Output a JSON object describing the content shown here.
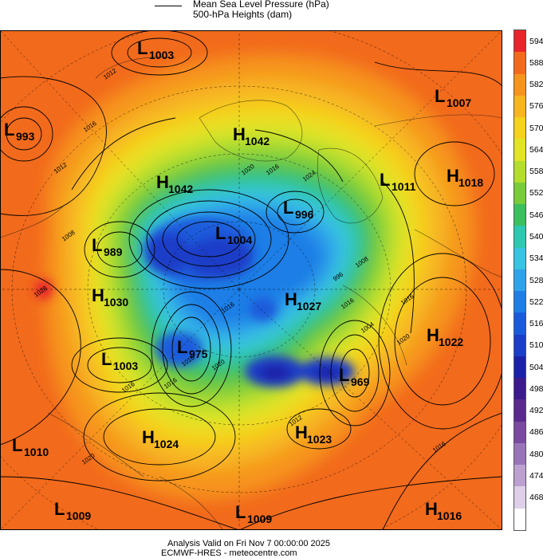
{
  "legend": {
    "line1": "Mean Sea Level Pressure (hPa)",
    "line2": "500-hPa Heights (dam)"
  },
  "colorbar": {
    "levels": [
      {
        "label": "594",
        "color": "#e8252a"
      },
      {
        "label": "588",
        "color": "#f26a1c"
      },
      {
        "label": "582",
        "color": "#f6941e"
      },
      {
        "label": "576",
        "color": "#f7b520"
      },
      {
        "label": "570",
        "color": "#f5d21c"
      },
      {
        "label": "564",
        "color": "#e2e426"
      },
      {
        "label": "558",
        "color": "#b4de2e"
      },
      {
        "label": "552",
        "color": "#78cc3a"
      },
      {
        "label": "546",
        "color": "#3cbf5e"
      },
      {
        "label": "540",
        "color": "#2ec7b0"
      },
      {
        "label": "534",
        "color": "#38c4e3"
      },
      {
        "label": "528",
        "color": "#2fa3ea"
      },
      {
        "label": "522",
        "color": "#1e7ee6"
      },
      {
        "label": "516",
        "color": "#1a5bdc"
      },
      {
        "label": "510",
        "color": "#1a3ec8"
      },
      {
        "label": "504",
        "color": "#1a21a8"
      },
      {
        "label": "498",
        "color": "#3a1a8c"
      },
      {
        "label": "492",
        "color": "#5a2a8e"
      },
      {
        "label": "486",
        "color": "#7a4aa0"
      },
      {
        "label": "480",
        "color": "#9a74b8"
      },
      {
        "label": "474",
        "color": "#bca0d0"
      },
      {
        "label": "468",
        "color": "#ddd0e8"
      },
      {
        "label": "",
        "color": "#ffffff"
      }
    ]
  },
  "systems": [
    {
      "type": "L",
      "value": "1003"
    },
    {
      "type": "L",
      "value": "993"
    },
    {
      "type": "L",
      "value": "1007"
    },
    {
      "type": "H",
      "value": "1042"
    },
    {
      "type": "H",
      "value": "1042"
    },
    {
      "type": "L",
      "value": "1011"
    },
    {
      "type": "H",
      "value": "1018"
    },
    {
      "type": "L",
      "value": "996"
    },
    {
      "type": "L",
      "value": "1004"
    },
    {
      "type": "L",
      "value": "989"
    },
    {
      "type": "H",
      "value": "1030"
    },
    {
      "type": "H",
      "value": "1027"
    },
    {
      "type": "H",
      "value": "1022"
    },
    {
      "type": "L",
      "value": "975"
    },
    {
      "type": "L",
      "value": "1003"
    },
    {
      "type": "L",
      "value": "969"
    },
    {
      "type": "H",
      "value": "1024"
    },
    {
      "type": "H",
      "value": "1023"
    },
    {
      "type": "L",
      "value": "1010"
    },
    {
      "type": "L",
      "value": "1009"
    },
    {
      "type": "L",
      "value": "1009"
    },
    {
      "type": "H",
      "value": "1016"
    }
  ],
  "isobar_labels": [
    "1012",
    "1016",
    "1012",
    "1020",
    "1016",
    "1024",
    "1008",
    "1028",
    "1016",
    "1020",
    "1016",
    "1016",
    "1016",
    "1020",
    "1016",
    "1016",
    "1012",
    "1016",
    "1008",
    "1020",
    "996",
    "1004"
  ],
  "footer": {
    "line1": "Analysis Valid on Fri Nov  7 00:00:00 2025",
    "line2": "ECMWF-HRES  - meteocentre.com"
  }
}
